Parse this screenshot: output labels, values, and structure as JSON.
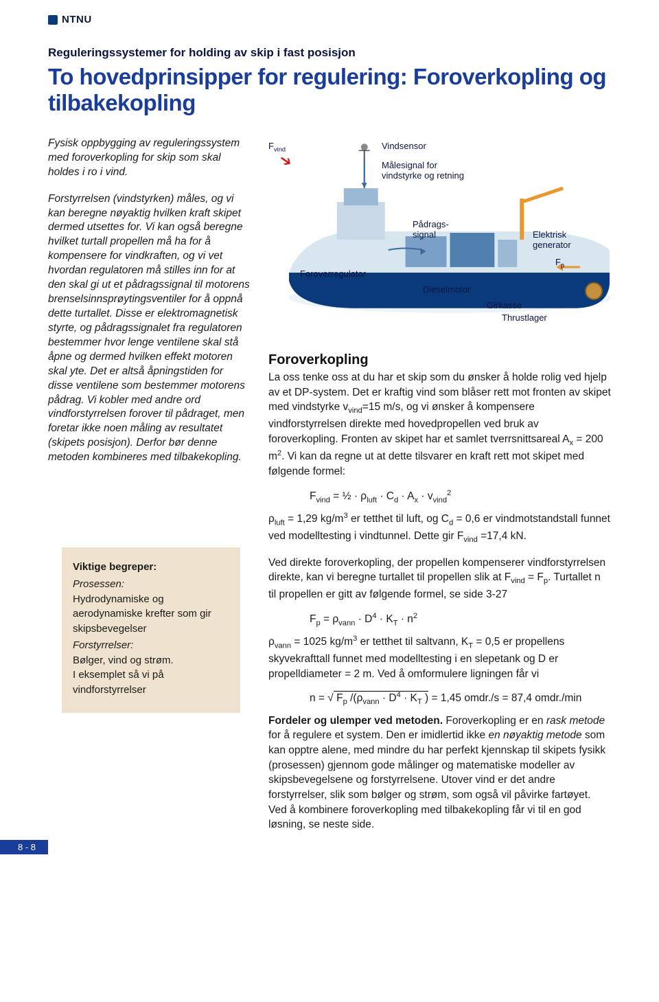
{
  "logo": {
    "text": "NTNU"
  },
  "kicker": "Reguleringssystemer for holding av skip i fast posisjon",
  "headline": "To hovedprinsipper for regulering: Foroverkopling og tilbakekopling",
  "intro": "Fysisk oppbygging av reguleringssystem med foroverkopling for skip som skal holdes i ro i vind.",
  "left_para": "Forstyrrelsen (vindstyrken) måles, og vi kan beregne nøyaktig hvilken kraft skipet dermed utsettes for. Vi kan også beregne hvilket turtall propellen må ha for å kompensere for vindkraften, og vi vet hvordan regulatoren må stilles inn for at den skal gi ut et pådragssignal til motorens brenselsinnsprøytingsventiler for å oppnå dette turtallet. Disse er elektromagnetisk styrte, og pådragssignalet fra regulatoren bestemmer hvor lenge ventilene skal stå åpne og dermed hvilken effekt motoren skal yte. Det er altså åpningstiden for disse ventilene som bestemmer motorens pådrag. Vi kobler med andre ord vindforstyrrelsen forover til pådraget, men foretar ikke noen måling av resultatet (skipets posisjon). Derfor bør denne metoden kombineres med tilbakekopling.",
  "keybox": {
    "title": "Viktige begreper:",
    "l1lab": "Prosessen:",
    "l1txt": "Hydrodynamiske og aerodynamiske krefter som gir skipsbevegelser",
    "l2lab": "Forstyrrelser:",
    "l2txt1": "Bølger, vind og strøm.",
    "l2txt2": "I eksemplet så vi på vindforstyrrelser"
  },
  "diagram": {
    "fvind": "F",
    "fvind_sub": "vind",
    "vindsensor": "Vindsensor",
    "malesignal": "Målesignal for vindstyrke og retning",
    "padrag": "Pådrags-\nsignal",
    "elektrisk": "Elektrisk generator",
    "forover": "Foroverregulator",
    "fp": "F",
    "fp_sub": "p",
    "diesel": "Dieselmotor",
    "girkasse": "Girkasse",
    "thrust": "Thrustlager",
    "colors": {
      "hull_dark": "#0a3a7a",
      "hull_light": "#d8e6f0",
      "deck": "#bfd4e6",
      "crane": "#e89830",
      "bridge": "#5080b0",
      "water": "#e6f0f6",
      "arrow": "#d62020",
      "text": "#0a1440"
    }
  },
  "subhead": "Foroverkopling",
  "p1a": "La oss tenke oss at du har et skip som du ønsker å holde rolig ved hjelp av et DP-system. Det er kraftig vind som blåser rett mot fronten av skipet med vindstyrke v",
  "p1b": "=15 m/s, og vi ønsker å kompensere vindforstyrrelsen direkte med hovedpropellen ved bruk av foroverkopling. Fronten av skipet har et samlet tverrsnittsareal A",
  "p1c": " = 200 m",
  "p1d": ". Vi kan da regne ut at dette tilsvarer en kraft rett mot skipet med følgende formel:",
  "form1_html": "F<sub>vind</sub> = ½ · ρ<sub>luft</sub> · C<sub>d</sub> · A<sub>x</sub> · v<sub>vind</sub><sup>2</sup>",
  "p2a": "ρ",
  "p2b": " = 1,29 kg/m",
  "p2c": " er tetthet til luft, og C",
  "p2d": " = 0,6 er vindmotstandstall funnet ved modelltesting i vindtunnel. Dette gir F",
  "p2e": " =17,4 kN.",
  "p3a": "Ved direkte foroverkopling, der propellen kompenserer vindforstyrrelsen direkte, kan vi beregne turtallet til propellen slik at F",
  "p3b": " = F",
  "p3c": ". Turtallet n til propellen er gitt av følgende formel, se side 3-27",
  "form2_html": "F<sub>p</sub> = ρ<sub>vann</sub> · D<sup>4</sup> · K<sub>T</sub> · n<sup>2</sup>",
  "p4a": "ρ",
  "p4b": " = 1025 kg/m",
  "p4c": " er tetthet til saltvann, K",
  "p4d": " = 0,5 er propellens skyvekrafttall funnet med modelltesting i en slepetank og D er propelldiameter = 2 m. Ved å omformulere ligningen får vi",
  "form3_pre": "n = √",
  "form3_radicand": " F<sub>p</sub> /(ρ<sub>vann</sub> · D<sup>4</sup> · K<sub>T</sub> )",
  "form3_post": " = 1,45 omdr./s = 87,4 omdr./min",
  "p5lead": "Fordeler og ulemper ved metoden. ",
  "p5a": "Foroverkopling er en ",
  "p5it1": "rask metode",
  "p5b": " for å regulere et system. Den er imidlertid ikke ",
  "p5it2": "en nøyaktig metode",
  "p5c": " som kan opptre alene, med mindre du har perfekt kjennskap til skipets fysikk (prosessen) gjennom gode målinger og matematiske modeller av skipsbevegelsene og forstyrrelsene. Utover vind er det andre forstyrrelser, slik som bølger og strøm, som også vil påvirke fartøyet. Ved å kombinere foroverkopling med tilbakekopling får vi til en god løsning, se neste side.",
  "pagenum": "8 - 8"
}
